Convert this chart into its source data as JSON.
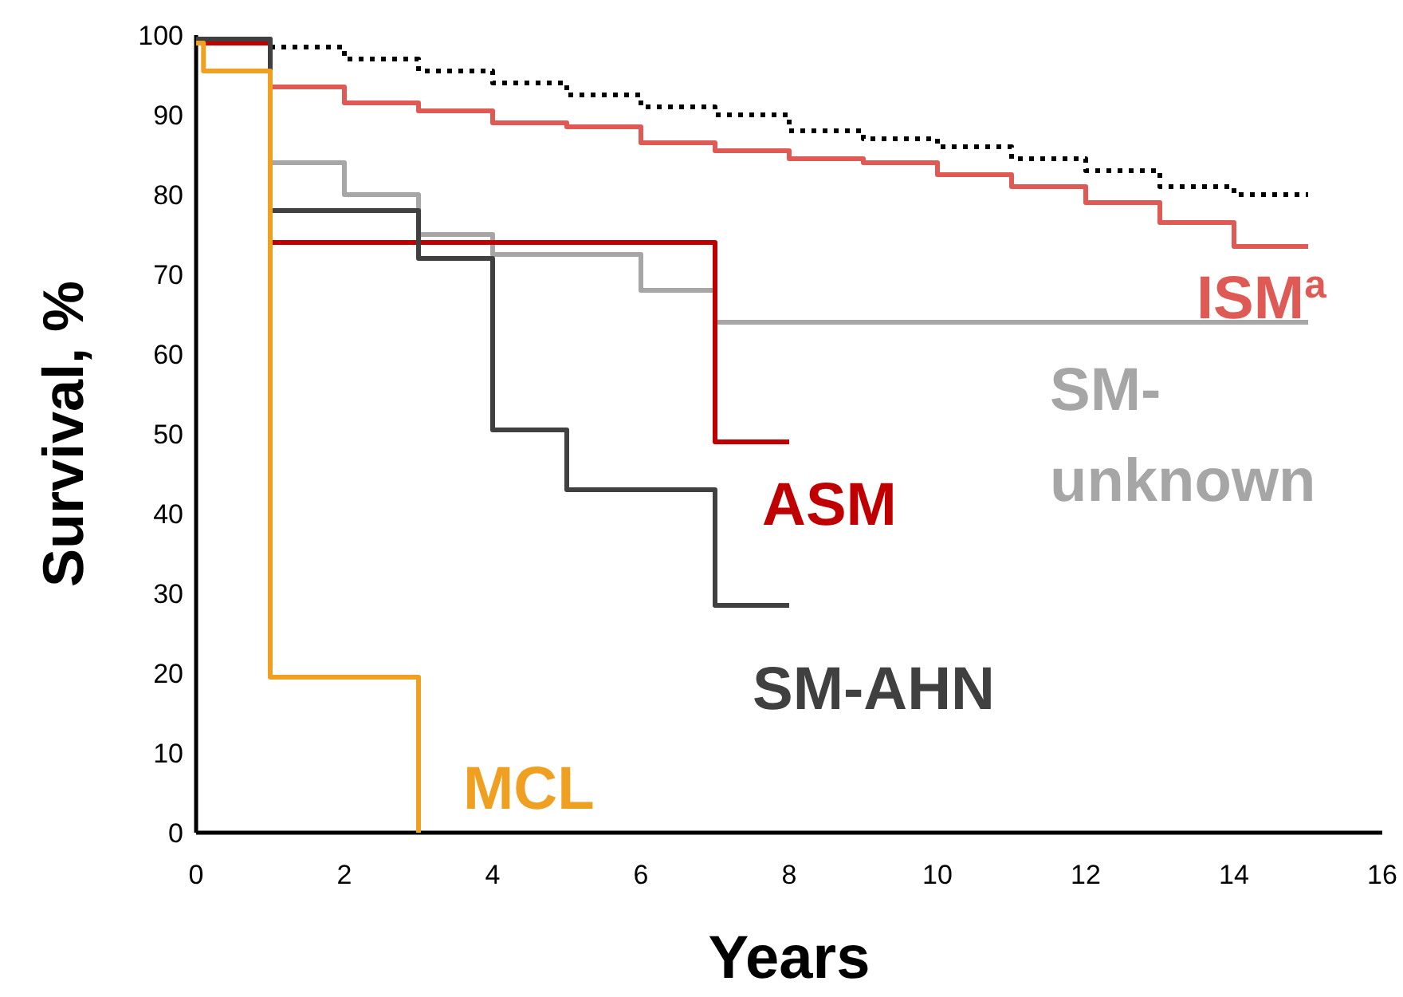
{
  "chart_data": {
    "type": "step",
    "xlabel": "Years",
    "ylabel": "Survival, %",
    "xlim": [
      0,
      16
    ],
    "xticks": [
      0,
      2,
      4,
      6,
      8,
      10,
      12,
      14,
      16
    ],
    "ylim": [
      0,
      100
    ],
    "yticks": [
      0,
      10,
      20,
      30,
      40,
      50,
      60,
      70,
      80,
      90,
      100
    ],
    "grid": false,
    "marker": "none",
    "series": [
      {
        "color": "#000000",
        "line_style": "dotted",
        "x": [
          0,
          1,
          2,
          3,
          4,
          5,
          6,
          7,
          8,
          9,
          10,
          11,
          12,
          13,
          14,
          15
        ],
        "values": [
          99,
          98.5,
          97,
          95.5,
          94,
          92.5,
          91,
          90,
          88,
          87,
          86,
          84.5,
          83,
          81,
          80,
          80
        ]
      },
      {
        "name": "ISM$^{a}$",
        "color": "#e05a55",
        "x": [
          0,
          1,
          2,
          3,
          4,
          5,
          6,
          7,
          8,
          9,
          10,
          11,
          12,
          13,
          14,
          15
        ],
        "values": [
          99,
          93.5,
          91.5,
          90.5,
          89,
          88.5,
          86.5,
          85.5,
          84.5,
          84,
          82.5,
          81,
          79,
          76.5,
          73.5,
          73.5
        ]
      },
      {
        "name": "SM-unknown",
        "color": "#a6a6a6",
        "x": [
          0,
          1,
          2,
          3,
          4,
          6,
          7,
          15
        ],
        "values": [
          99.5,
          84,
          80,
          75,
          72.5,
          68,
          64,
          64
        ]
      },
      {
        "name": "ASM",
        "color": "#c00000",
        "x": [
          0,
          1,
          7,
          8
        ],
        "values": [
          99,
          74,
          49,
          49
        ]
      },
      {
        "name": "SM-AHN",
        "color": "#404040",
        "x": [
          0,
          1,
          3,
          4,
          5,
          7,
          8
        ],
        "values": [
          99.5,
          78,
          72,
          50.5,
          43,
          28.5,
          28.5
        ]
      },
      {
        "name": "MCL",
        "color": "#f0a020",
        "x": [
          0,
          0.1,
          1,
          3
        ],
        "values": [
          99,
          95.5,
          19.5,
          0
        ]
      }
    ]
  }
}
